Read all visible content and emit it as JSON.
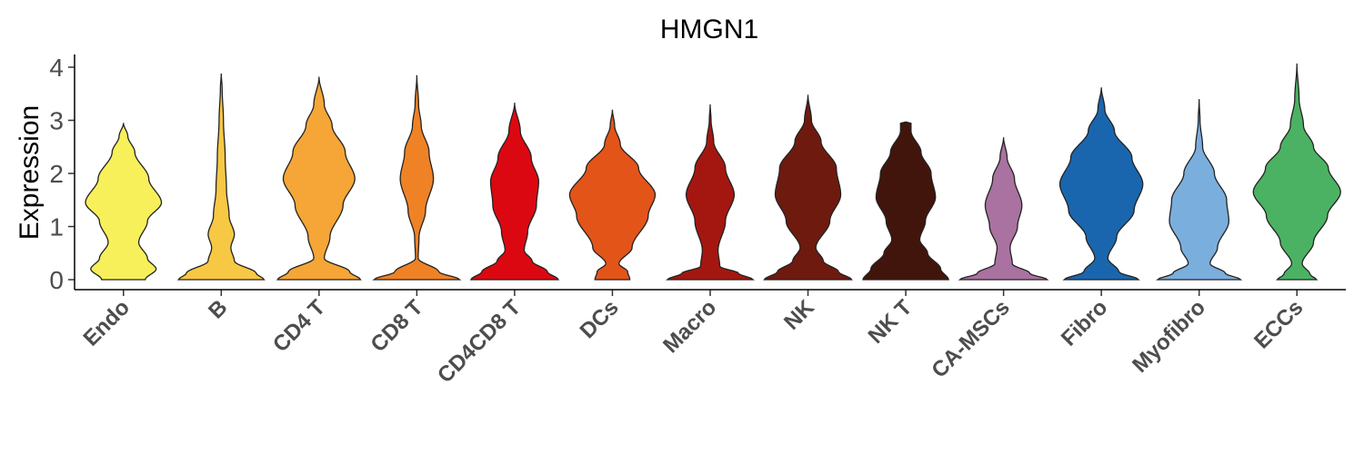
{
  "chart_data": {
    "type": "violin",
    "title": "HMGN1",
    "xlabel": "",
    "ylabel": "Expression",
    "ylim": [
      -0.2,
      4.3
    ],
    "yticks": [
      0,
      1,
      2,
      3,
      4
    ],
    "grid": false,
    "legend": "none",
    "categories": [
      "Endo",
      "B",
      "CD4 T",
      "CD8 T",
      "CD4CD8 T",
      "DCs",
      "Macro",
      "NK",
      "NK T",
      "CA-MSCs",
      "Fibro",
      "Myofibro",
      "ECCs"
    ],
    "colors": [
      "#F7F05A",
      "#F7C844",
      "#F5A636",
      "#F08226",
      "#DC0811",
      "#E35419",
      "#A41710",
      "#6E1A0F",
      "#42150C",
      "#A972A0",
      "#1A66AE",
      "#7AAEDD",
      "#4BB263"
    ],
    "series": [
      {
        "name": "Endo",
        "max": 2.95,
        "profile": [
          [
            0,
            0.5
          ],
          [
            0.2,
            0.75
          ],
          [
            0.4,
            0.55
          ],
          [
            0.7,
            0.35
          ],
          [
            1.1,
            0.55
          ],
          [
            1.45,
            0.87
          ],
          [
            1.9,
            0.58
          ],
          [
            2.4,
            0.26
          ],
          [
            2.7,
            0.1
          ],
          [
            2.95,
            0
          ]
        ]
      },
      {
        "name": "B",
        "max": 3.88,
        "profile": [
          [
            0,
            0.98
          ],
          [
            0.12,
            0.8
          ],
          [
            0.35,
            0.3
          ],
          [
            0.6,
            0.22
          ],
          [
            0.85,
            0.3
          ],
          [
            1.2,
            0.18
          ],
          [
            1.7,
            0.12
          ],
          [
            2.3,
            0.09
          ],
          [
            3.0,
            0.05
          ],
          [
            3.6,
            0.02
          ],
          [
            3.88,
            0
          ]
        ]
      },
      {
        "name": "CD4 T",
        "max": 3.82,
        "profile": [
          [
            0,
            0.95
          ],
          [
            0.15,
            0.7
          ],
          [
            0.4,
            0.12
          ],
          [
            0.8,
            0.25
          ],
          [
            1.4,
            0.55
          ],
          [
            1.9,
            0.82
          ],
          [
            2.4,
            0.6
          ],
          [
            2.9,
            0.3
          ],
          [
            3.3,
            0.12
          ],
          [
            3.82,
            0
          ]
        ]
      },
      {
        "name": "CD8 T",
        "max": 3.85,
        "profile": [
          [
            0,
            0.98
          ],
          [
            0.15,
            0.5
          ],
          [
            0.4,
            0.03
          ],
          [
            0.8,
            0.05
          ],
          [
            1.3,
            0.2
          ],
          [
            1.9,
            0.38
          ],
          [
            2.4,
            0.28
          ],
          [
            2.9,
            0.1
          ],
          [
            3.3,
            0.04
          ],
          [
            3.85,
            0
          ]
        ]
      },
      {
        "name": "CD4CD8 T",
        "max": 3.33,
        "profile": [
          [
            0,
            1.0
          ],
          [
            0.15,
            0.75
          ],
          [
            0.35,
            0.4
          ],
          [
            0.55,
            0.22
          ],
          [
            0.9,
            0.3
          ],
          [
            1.4,
            0.5
          ],
          [
            1.85,
            0.55
          ],
          [
            2.3,
            0.38
          ],
          [
            2.8,
            0.13
          ],
          [
            3.33,
            0
          ]
        ]
      },
      {
        "name": "DCs",
        "max": 3.2,
        "profile": [
          [
            0,
            0.4
          ],
          [
            0.15,
            0.35
          ],
          [
            0.3,
            0.15
          ],
          [
            0.6,
            0.45
          ],
          [
            1.2,
            0.82
          ],
          [
            1.6,
            0.98
          ],
          [
            2.1,
            0.6
          ],
          [
            2.55,
            0.18
          ],
          [
            2.9,
            0.05
          ],
          [
            3.2,
            0
          ]
        ]
      },
      {
        "name": "Macro",
        "max": 3.3,
        "profile": [
          [
            0,
            0.98
          ],
          [
            0.12,
            0.65
          ],
          [
            0.25,
            0.22
          ],
          [
            0.55,
            0.18
          ],
          [
            1.1,
            0.35
          ],
          [
            1.6,
            0.55
          ],
          [
            2.1,
            0.35
          ],
          [
            2.6,
            0.08
          ],
          [
            3.0,
            0.02
          ],
          [
            3.3,
            0
          ]
        ]
      },
      {
        "name": "NK",
        "max": 3.48,
        "profile": [
          [
            0,
            1.0
          ],
          [
            0.15,
            0.7
          ],
          [
            0.35,
            0.35
          ],
          [
            0.6,
            0.18
          ],
          [
            1.1,
            0.5
          ],
          [
            1.6,
            0.75
          ],
          [
            2.1,
            0.65
          ],
          [
            2.6,
            0.3
          ],
          [
            3.0,
            0.08
          ],
          [
            3.48,
            0
          ]
        ]
      },
      {
        "name": "NK T",
        "max": 2.97,
        "profile": [
          [
            0,
            0.98
          ],
          [
            0.2,
            0.8
          ],
          [
            0.5,
            0.5
          ],
          [
            0.75,
            0.32
          ],
          [
            1.1,
            0.45
          ],
          [
            1.55,
            0.68
          ],
          [
            2.0,
            0.58
          ],
          [
            2.4,
            0.35
          ],
          [
            2.8,
            0.12
          ],
          [
            2.95,
            0.12
          ],
          [
            2.97,
            0
          ]
        ]
      },
      {
        "name": "CA-MSCs",
        "max": 2.68,
        "profile": [
          [
            0,
            1.0
          ],
          [
            0.12,
            0.6
          ],
          [
            0.3,
            0.2
          ],
          [
            0.6,
            0.15
          ],
          [
            1.0,
            0.32
          ],
          [
            1.4,
            0.42
          ],
          [
            1.9,
            0.25
          ],
          [
            2.3,
            0.08
          ],
          [
            2.68,
            0
          ]
        ]
      },
      {
        "name": "Fibro",
        "max": 3.62,
        "profile": [
          [
            0,
            0.85
          ],
          [
            0.15,
            0.4
          ],
          [
            0.4,
            0.15
          ],
          [
            0.8,
            0.35
          ],
          [
            1.3,
            0.75
          ],
          [
            1.8,
            0.95
          ],
          [
            2.3,
            0.7
          ],
          [
            2.8,
            0.3
          ],
          [
            3.2,
            0.08
          ],
          [
            3.62,
            0
          ]
        ]
      },
      {
        "name": "Myofibro",
        "max": 3.4,
        "profile": [
          [
            0,
            0.95
          ],
          [
            0.12,
            0.6
          ],
          [
            0.3,
            0.25
          ],
          [
            0.6,
            0.42
          ],
          [
            1.1,
            0.68
          ],
          [
            1.5,
            0.63
          ],
          [
            2.0,
            0.35
          ],
          [
            2.5,
            0.08
          ],
          [
            3.0,
            0.02
          ],
          [
            3.4,
            0
          ]
        ]
      },
      {
        "name": "ECCs",
        "max": 4.07,
        "profile": [
          [
            0,
            0.45
          ],
          [
            0.1,
            0.3
          ],
          [
            0.3,
            0.12
          ],
          [
            0.7,
            0.38
          ],
          [
            1.2,
            0.7
          ],
          [
            1.65,
            1.0
          ],
          [
            2.1,
            0.72
          ],
          [
            2.5,
            0.38
          ],
          [
            2.9,
            0.15
          ],
          [
            3.4,
            0.05
          ],
          [
            4.07,
            0
          ]
        ]
      }
    ]
  }
}
